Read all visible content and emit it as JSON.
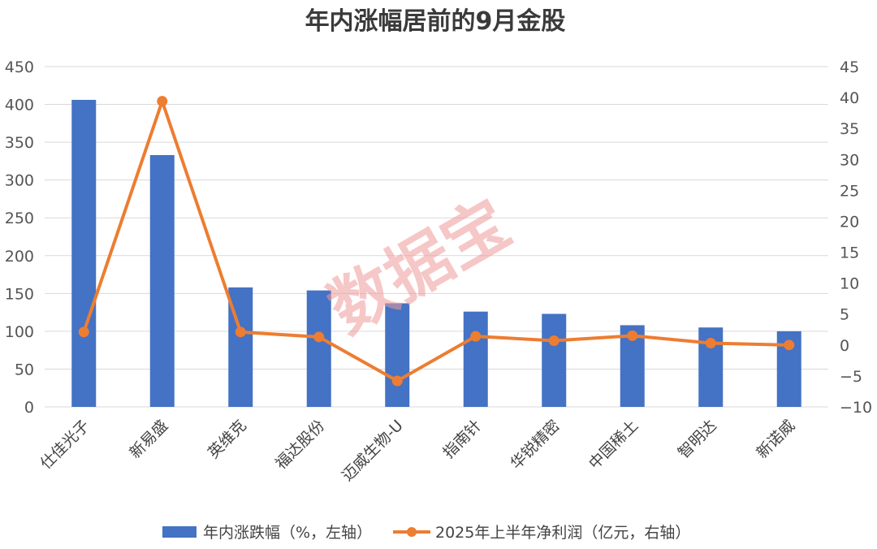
{
  "chart_data": {
    "type": "bar+line",
    "title": "年内涨幅居前的9月金股",
    "categories": [
      "仕佳光子",
      "新易盛",
      "英维克",
      "福达股份",
      "迈威生物-U",
      "指南针",
      "华锐精密",
      "中国稀土",
      "智明达",
      "新诺威"
    ],
    "series": [
      {
        "name": "年内涨跌幅（%，左轴）",
        "type": "bar",
        "axis": "left",
        "color": "#4472c4",
        "values": [
          406,
          333,
          158,
          154,
          137,
          126,
          123,
          108,
          105,
          100
        ]
      },
      {
        "name": "2025年上半年净利润（亿元，右轴）",
        "type": "line",
        "axis": "right",
        "color": "#ed7d31",
        "values": [
          2.1,
          39.4,
          2.1,
          1.3,
          -5.8,
          1.4,
          0.7,
          1.5,
          0.3,
          0.0
        ]
      }
    ],
    "y_left": {
      "min": 0,
      "max": 450,
      "step": 50,
      "ticks": [
        "0",
        "50",
        "100",
        "150",
        "200",
        "250",
        "300",
        "350",
        "400",
        "450"
      ]
    },
    "y_right": {
      "min": -10,
      "max": 45,
      "step": 5,
      "ticks": [
        "−10",
        "−5",
        "0",
        "5",
        "10",
        "15",
        "20",
        "25",
        "30",
        "35",
        "40",
        "45"
      ]
    },
    "grid": true,
    "legend_position": "bottom",
    "watermark": "数据宝"
  }
}
